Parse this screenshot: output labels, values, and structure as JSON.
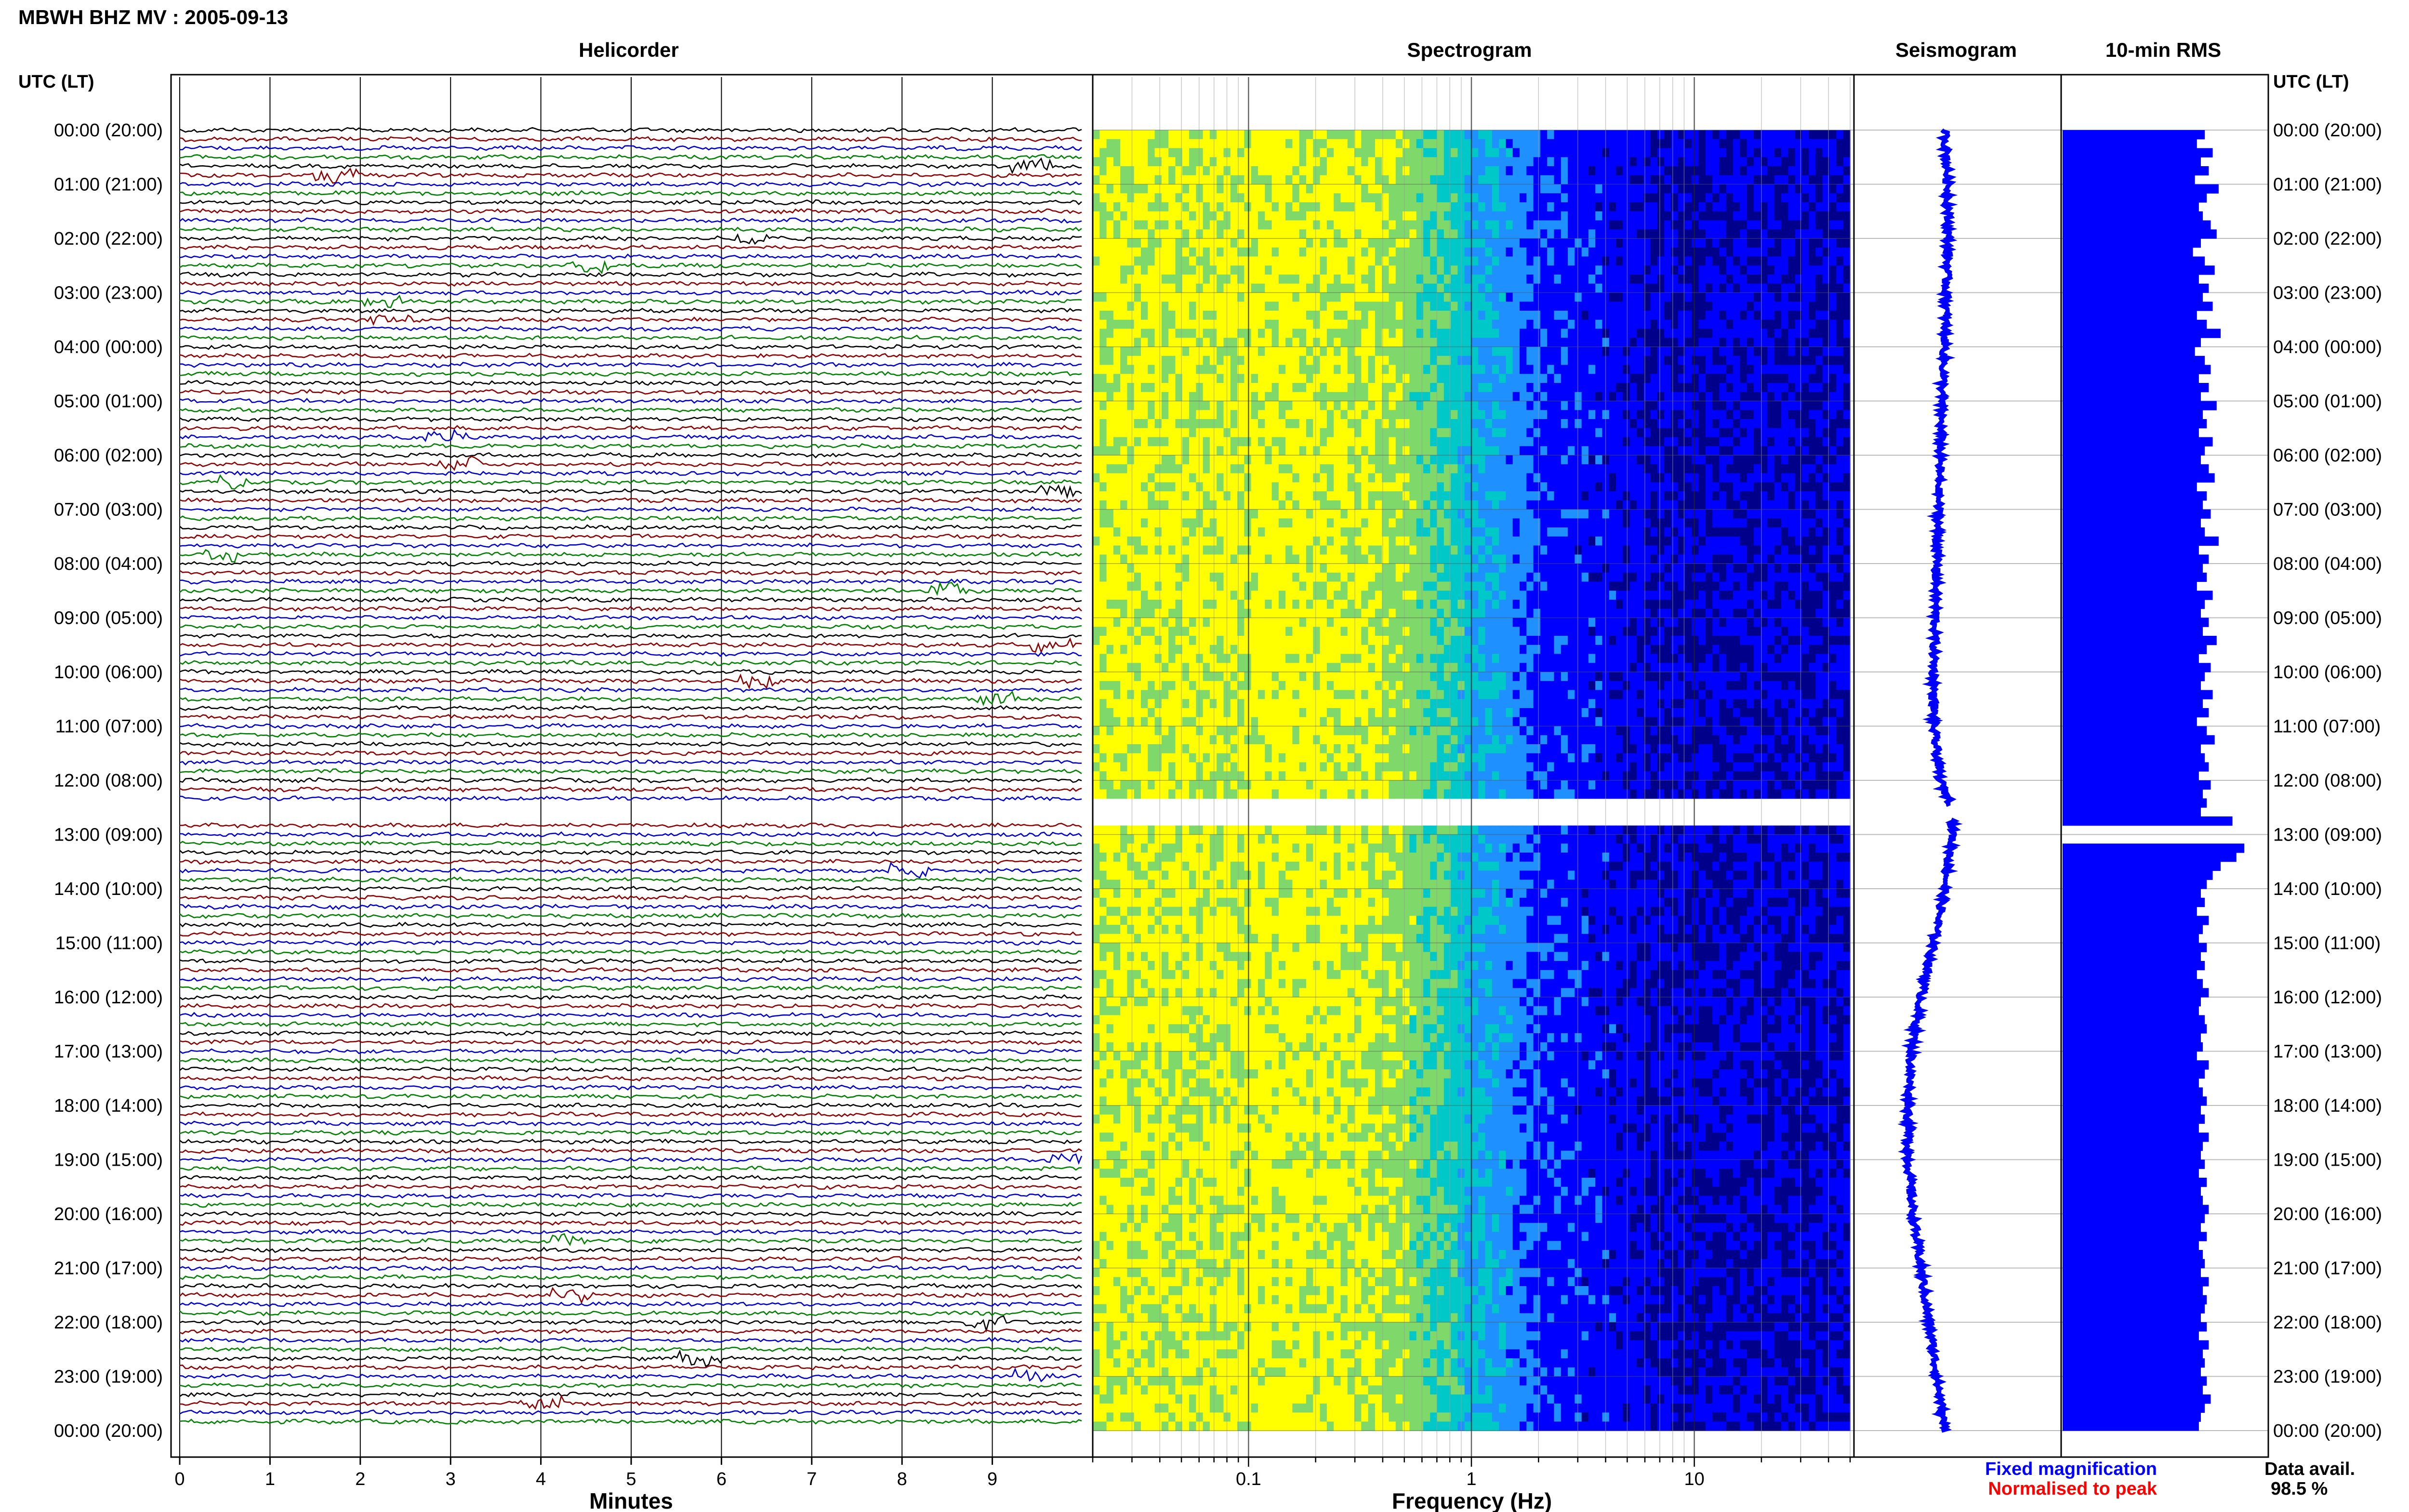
{
  "title": "MBWH BHZ MV : 2005-09-13",
  "left_axis_label": "UTC (LT)",
  "right_axis_label": "UTC (LT)",
  "panels": {
    "helicorder": "Helicorder",
    "spectrogram": "Spectrogram",
    "seismogram": "Seismogram",
    "rms": "10-min RMS"
  },
  "bottom_labels": {
    "minutes": "Minutes",
    "frequency": "Frequency (Hz)"
  },
  "legend": {
    "fixed": "Fixed magnification",
    "normalised": "Normalised to peak",
    "fixed_color": "#0000ff",
    "normalised_color": "#ff0000"
  },
  "data_avail": {
    "label": "Data avail.",
    "value": "98.5 %"
  },
  "time_labels": [
    "00:00 (20:00)",
    "01:00 (21:00)",
    "02:00 (22:00)",
    "03:00 (23:00)",
    "04:00 (00:00)",
    "05:00 (01:00)",
    "06:00 (02:00)",
    "07:00 (03:00)",
    "08:00 (04:00)",
    "09:00 (05:00)",
    "10:00 (06:00)",
    "11:00 (07:00)",
    "12:00 (08:00)",
    "13:00 (09:00)",
    "14:00 (10:00)",
    "15:00 (11:00)",
    "16:00 (12:00)",
    "17:00 (13:00)",
    "18:00 (14:00)",
    "19:00 (15:00)",
    "20:00 (16:00)",
    "21:00 (17:00)",
    "22:00 (18:00)",
    "23:00 (19:00)",
    "00:00 (20:00)"
  ],
  "chart_data": [
    {
      "type": "line",
      "panel": "Helicorder",
      "xlabel": "Minutes",
      "x_ticks": [
        "0",
        "1",
        "2",
        "3",
        "4",
        "5",
        "6",
        "7",
        "8",
        "9"
      ],
      "xlim": [
        0,
        10
      ],
      "traces_per_hour": 6,
      "trace_colors": [
        "#000000",
        "#8b0000",
        "#0000cc",
        "#008000"
      ],
      "data_gap_hours": [
        12.5,
        12.7
      ]
    },
    {
      "type": "heatmap",
      "panel": "Spectrogram",
      "xlabel": "Frequency (Hz)",
      "x_scale": "log",
      "x_ticks": [
        "0.1",
        "1",
        "10"
      ],
      "xlim": [
        0.02,
        50
      ],
      "colormap": [
        "#00008b",
        "#0000ff",
        "#1e90ff",
        "#00c8c8",
        "#7fd96a",
        "#ffff00"
      ]
    },
    {
      "type": "line",
      "panel": "Seismogram",
      "color": "#0000ff",
      "x": [
        0.0,
        1.0,
        2.0,
        3.0,
        4.0,
        5.0,
        6.0,
        7.0,
        8.0,
        9.0,
        10.0,
        11.0,
        12.0,
        12.5,
        13.0,
        14.0,
        15.0,
        16.0,
        17.0,
        18.0,
        19.0,
        20.0,
        21.0,
        22.0,
        23.0,
        24.0
      ],
      "y": [
        0.45,
        0.47,
        0.47,
        0.46,
        0.45,
        0.43,
        0.42,
        0.41,
        0.4,
        0.39,
        0.38,
        0.38,
        0.42,
        0.5,
        0.5,
        0.45,
        0.38,
        0.3,
        0.24,
        0.22,
        0.22,
        0.25,
        0.3,
        0.35,
        0.4,
        0.45
      ]
    },
    {
      "type": "bar",
      "panel": "10-min RMS",
      "color": "#0000ff",
      "values": [
        0.72,
        0.68,
        0.76,
        0.7,
        0.74,
        0.67,
        0.79,
        0.73,
        0.69,
        0.71,
        0.75,
        0.78,
        0.7,
        0.66,
        0.72,
        0.77,
        0.69,
        0.74,
        0.71,
        0.76,
        0.68,
        0.73,
        0.8,
        0.7,
        0.67,
        0.72,
        0.75,
        0.69,
        0.74,
        0.7,
        0.78,
        0.71,
        0.73,
        0.69,
        0.76,
        0.72,
        0.7,
        0.74,
        0.77,
        0.68,
        0.73,
        0.71,
        0.75,
        0.7,
        0.72,
        0.79,
        0.69,
        0.74,
        0.71,
        0.73,
        0.68,
        0.76,
        0.72,
        0.7,
        0.74,
        0.71,
        0.78,
        0.73,
        0.69,
        0.75,
        0.72,
        0.7,
        0.76,
        0.71,
        0.74,
        0.68,
        0.73,
        0.77,
        0.7,
        0.72,
        0.74,
        0.69,
        0.75,
        0.71,
        0.73,
        0.7,
        0.86,
        0.0,
        0.0,
        0.92,
        0.88,
        0.8,
        0.76,
        0.73,
        0.7,
        0.72,
        0.68,
        0.74,
        0.71,
        0.69,
        0.73,
        0.7,
        0.72,
        0.68,
        0.71,
        0.74,
        0.7,
        0.69,
        0.72,
        0.73,
        0.7,
        0.71,
        0.68,
        0.74,
        0.72,
        0.69,
        0.71,
        0.73,
        0.7,
        0.72,
        0.69,
        0.74,
        0.71,
        0.7,
        0.72,
        0.69,
        0.73,
        0.7,
        0.71,
        0.74,
        0.72,
        0.7,
        0.73,
        0.69,
        0.71,
        0.72,
        0.7,
        0.74,
        0.71,
        0.73,
        0.72,
        0.7,
        0.73,
        0.69,
        0.74,
        0.71,
        0.72,
        0.7,
        0.73,
        0.71,
        0.75,
        0.72,
        0.7,
        0.69
      ]
    }
  ]
}
